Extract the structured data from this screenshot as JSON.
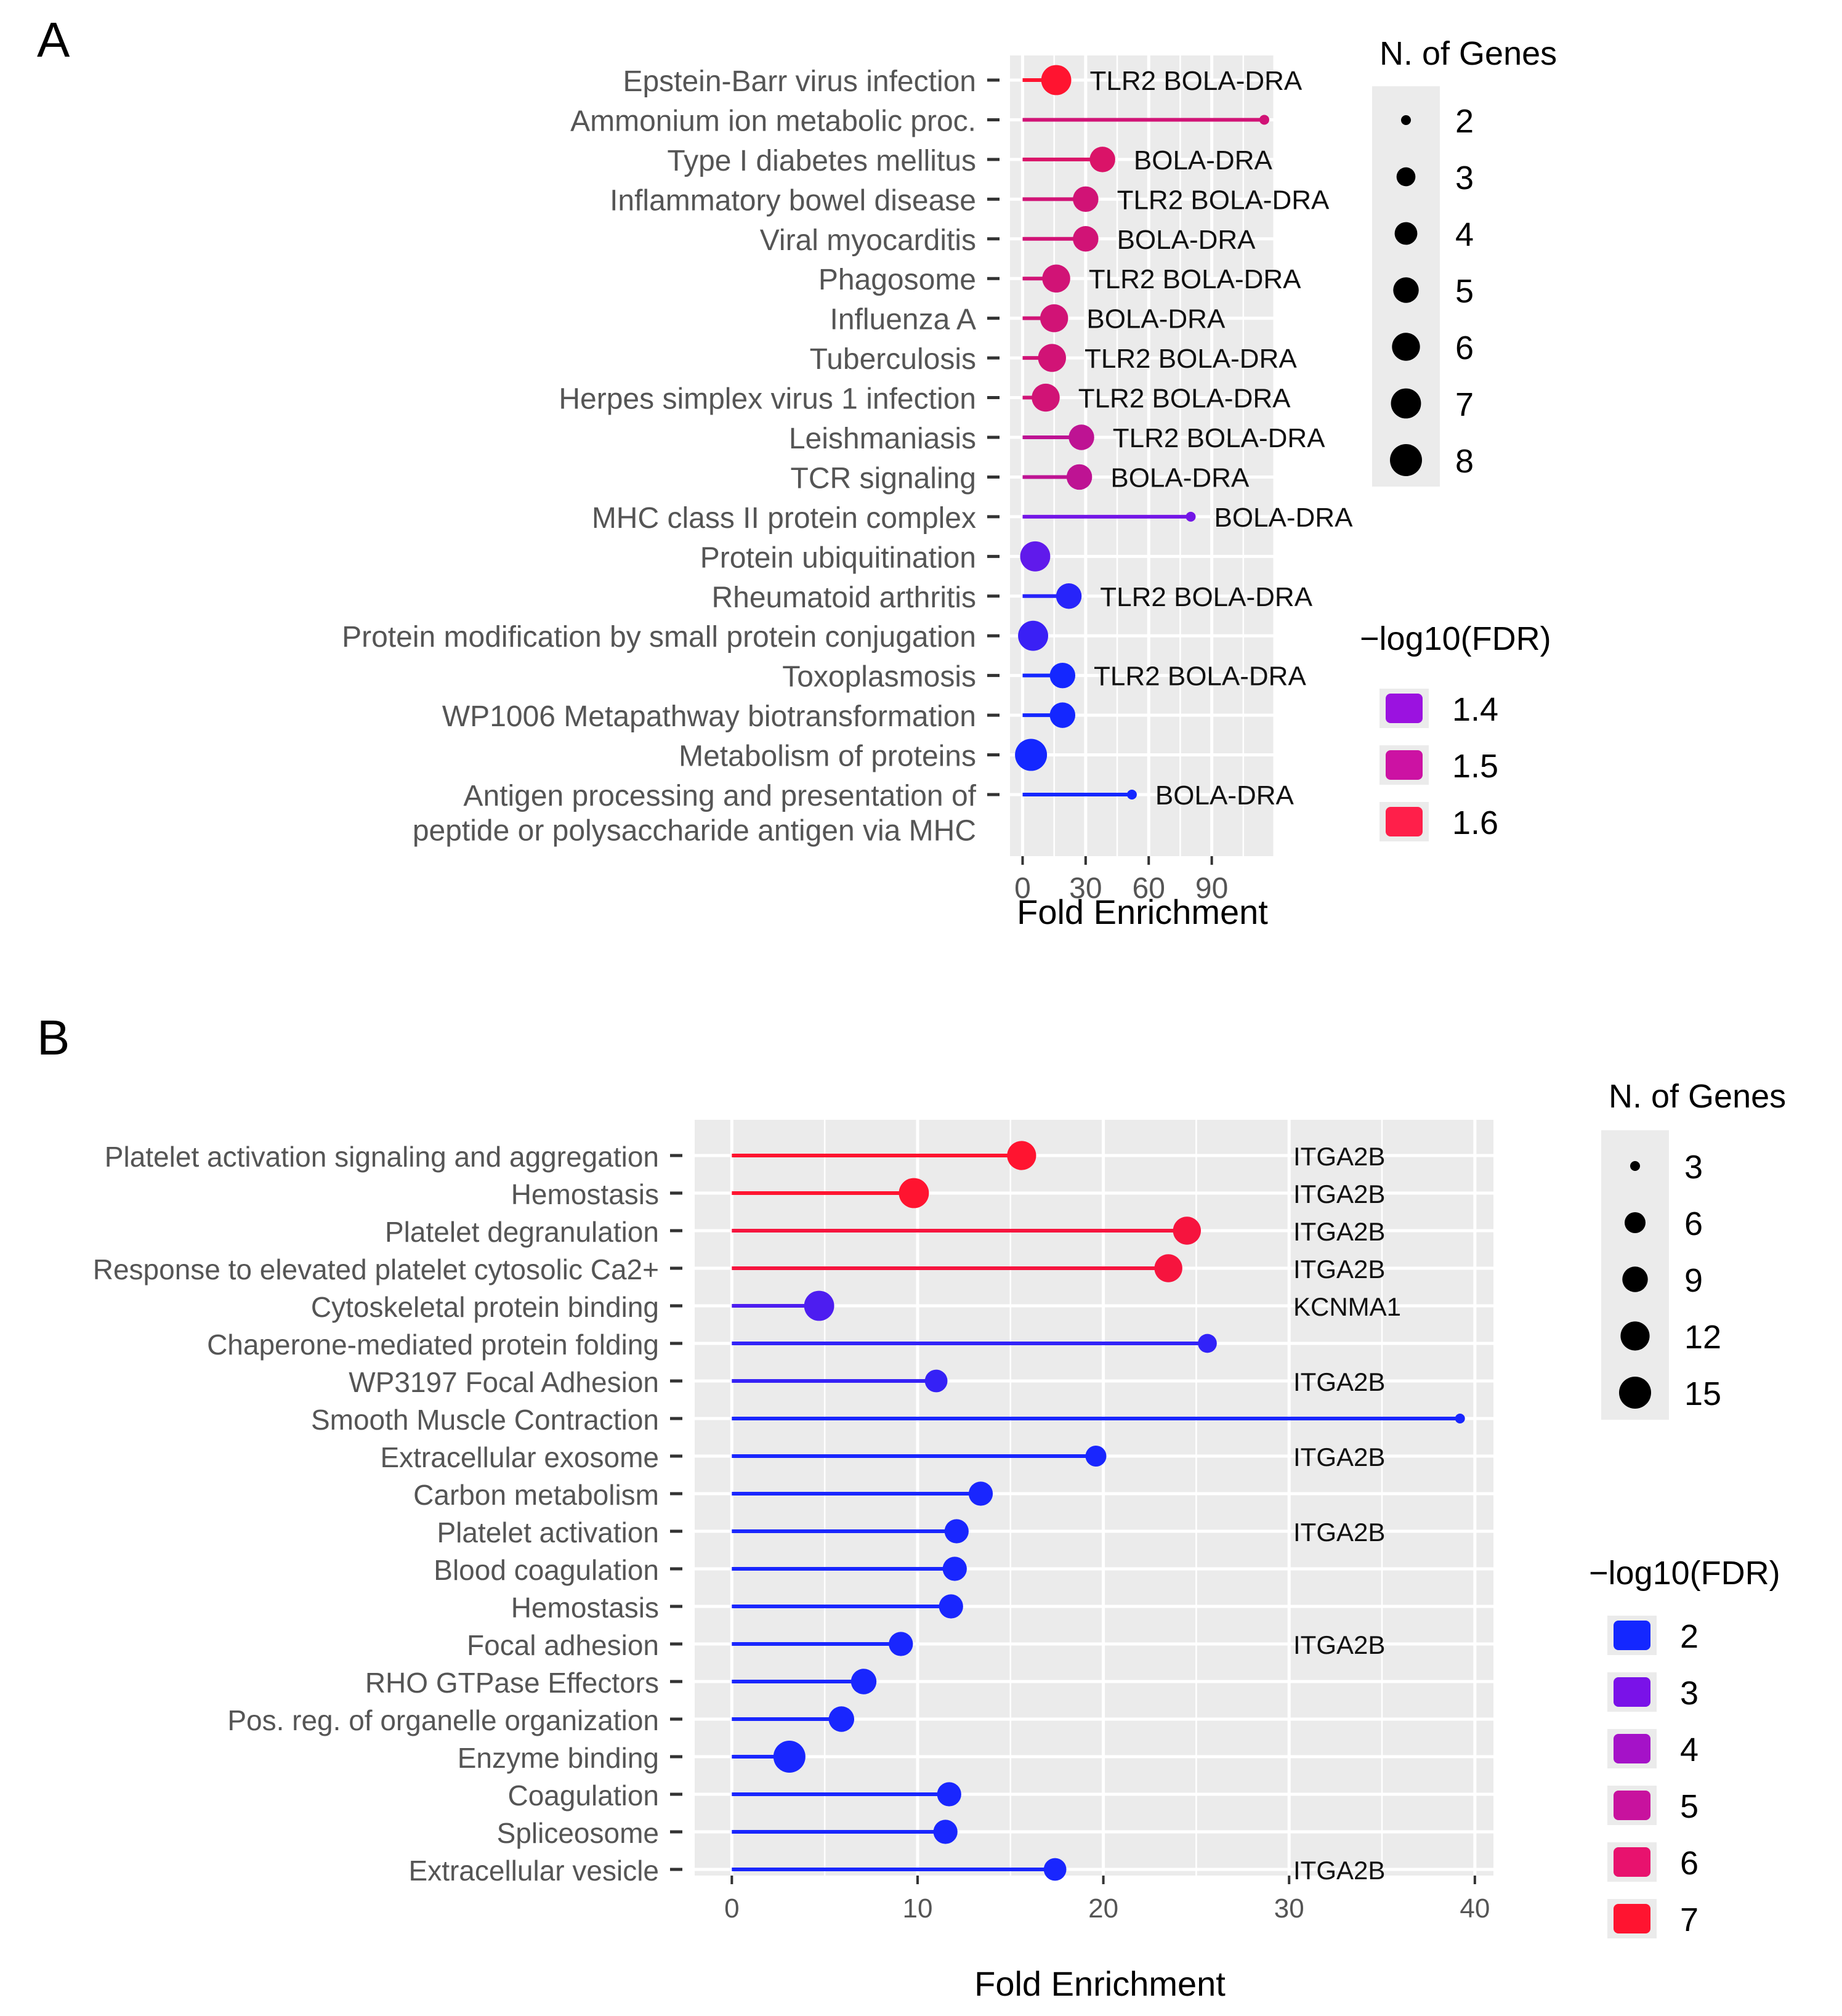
{
  "chart_data": [
    {
      "panel": "A",
      "type": "lollipop",
      "xlabel": "Fold Enrichment",
      "xticks": [
        0,
        30,
        60,
        90
      ],
      "xlim": [
        -6,
        120
      ],
      "size_legend": {
        "title": "N. of Genes",
        "values": [
          2,
          3,
          4,
          5,
          6,
          7,
          8
        ]
      },
      "color_legend": {
        "title": "−log10(FDR)",
        "values": [
          1.4,
          1.5,
          1.6
        ],
        "colors": [
          "#9b12e0",
          "#cc12a3",
          "#ff1f4a"
        ]
      },
      "colors": {
        "low": "#1427ff",
        "mid": "#8b12e0",
        "high": "#ff1430"
      },
      "rows": [
        {
          "label": "Epstein-Barr virus infection",
          "value": 16,
          "genes": "TLR2 BOLA-DRA",
          "size": 7,
          "fdr": 1.68
        },
        {
          "label": "Ammonium ion metabolic proc.",
          "value": 115,
          "genes": "",
          "size": 2,
          "fdr": 1.6
        },
        {
          "label": "Type I diabetes mellitus",
          "value": 38,
          "genes": "BOLA-DRA",
          "size": 5,
          "fdr": 1.61
        },
        {
          "label": "Inflammatory bowel disease",
          "value": 30,
          "genes": "TLR2 BOLA-DRA",
          "size": 5,
          "fdr": 1.6
        },
        {
          "label": "Viral myocarditis",
          "value": 30,
          "genes": "BOLA-DRA",
          "size": 5,
          "fdr": 1.6
        },
        {
          "label": "Phagosome",
          "value": 16,
          "genes": "TLR2 BOLA-DRA",
          "size": 6,
          "fdr": 1.6
        },
        {
          "label": "Influenza A",
          "value": 15,
          "genes": "BOLA-DRA",
          "size": 6,
          "fdr": 1.6
        },
        {
          "label": "Tuberculosis",
          "value": 14,
          "genes": "TLR2 BOLA-DRA",
          "size": 6,
          "fdr": 1.6
        },
        {
          "label": "Herpes simplex virus 1 infection",
          "value": 11,
          "genes": "TLR2 BOLA-DRA",
          "size": 6,
          "fdr": 1.6
        },
        {
          "label": "Leishmaniasis",
          "value": 28,
          "genes": "TLR2 BOLA-DRA",
          "size": 5,
          "fdr": 1.58
        },
        {
          "label": "TCR signaling",
          "value": 27,
          "genes": "BOLA-DRA",
          "size": 5,
          "fdr": 1.58
        },
        {
          "label": "MHC class II protein complex",
          "value": 80,
          "genes": "BOLA-DRA",
          "size": 2,
          "fdr": 1.5
        },
        {
          "label": "Protein ubiquitination",
          "value": 6,
          "genes": "",
          "size": 7,
          "fdr": 1.48
        },
        {
          "label": "Rheumatoid arthritis",
          "value": 22,
          "genes": "TLR2 BOLA-DRA",
          "size": 5,
          "fdr": 1.42
        },
        {
          "label": "Protein modification by small protein conjugation",
          "value": 5,
          "genes": "",
          "size": 7,
          "fdr": 1.44
        },
        {
          "label": "Toxoplasmosis",
          "value": 19,
          "genes": "TLR2 BOLA-DRA",
          "size": 5,
          "fdr": 1.38
        },
        {
          "label": "WP1006 Metapathway biotransformation",
          "value": 19,
          "genes": "",
          "size": 5,
          "fdr": 1.38
        },
        {
          "label": "Metabolism of proteins",
          "value": 4,
          "genes": "",
          "size": 8,
          "fdr": 1.36
        },
        {
          "label": "Antigen processing and presentation of peptide or polysaccharide antigen via MHC",
          "value": 52,
          "genes": "BOLA-DRA",
          "size": 2,
          "fdr": 1.3
        }
      ]
    },
    {
      "panel": "B",
      "type": "lollipop",
      "xlabel": "Fold Enrichment",
      "xticks": [
        0,
        10,
        20,
        30,
        40
      ],
      "xlim": [
        -2,
        41
      ],
      "size_legend": {
        "title": "N. of Genes",
        "values": [
          3,
          6,
          9,
          12,
          15
        ]
      },
      "color_legend": {
        "title": "−log10(FDR)",
        "values": [
          2,
          3,
          4,
          5,
          6,
          7
        ],
        "colors": [
          "#1427ff",
          "#7a12e8",
          "#a512c8",
          "#c8129e",
          "#e8126e",
          "#ff1430"
        ]
      },
      "colors": {
        "low": "#1427ff",
        "mid": "#8b12e0",
        "high": "#ff1430"
      },
      "rows": [
        {
          "label": "Platelet activation signaling and aggregation",
          "value": 15.6,
          "genes": "ITGA2B",
          "size": 12,
          "fdr": 7
        },
        {
          "label": "Hemostasis",
          "value": 9.8,
          "genes": "ITGA2B",
          "size": 13,
          "fdr": 7
        },
        {
          "label": "Platelet degranulation",
          "value": 24.5,
          "genes": "ITGA2B",
          "size": 11,
          "fdr": 6.8
        },
        {
          "label": "Response to elevated platelet cytosolic Ca2+",
          "value": 23.5,
          "genes": "ITGA2B",
          "size": 11,
          "fdr": 6.8
        },
        {
          "label": "Cytoskeletal protein binding",
          "value": 4.7,
          "genes": "KCNMA1",
          "size": 13,
          "fdr": 3.2
        },
        {
          "label": "Chaperone-mediated protein folding",
          "value": 25.6,
          "genes": "",
          "size": 5,
          "fdr": 2.6
        },
        {
          "label": "WP3197 Focal Adhesion",
          "value": 11,
          "genes": "ITGA2B",
          "size": 7,
          "fdr": 2.7
        },
        {
          "label": "Smooth Muscle Contraction",
          "value": 39.2,
          "genes": "",
          "size": 3,
          "fdr": 2.1
        },
        {
          "label": "Extracellular exosome",
          "value": 19.6,
          "genes": "ITGA2B",
          "size": 6,
          "fdr": 2.1
        },
        {
          "label": "Carbon metabolism",
          "value": 13.4,
          "genes": "",
          "size": 8,
          "fdr": 2.1
        },
        {
          "label": "Platelet activation",
          "value": 12.1,
          "genes": "ITGA2B",
          "size": 8,
          "fdr": 2.1
        },
        {
          "label": "Blood coagulation",
          "value": 12,
          "genes": "",
          "size": 8,
          "fdr": 2.1
        },
        {
          "label": "Hemostasis",
          "value": 11.8,
          "genes": "",
          "size": 8,
          "fdr": 2.1
        },
        {
          "label": "Focal adhesion",
          "value": 9.1,
          "genes": "ITGA2B",
          "size": 8,
          "fdr": 2.1
        },
        {
          "label": "RHO GTPase Effectors",
          "value": 7.1,
          "genes": "",
          "size": 9,
          "fdr": 2.1
        },
        {
          "label": "Pos. reg. of organelle organization",
          "value": 5.9,
          "genes": "",
          "size": 9,
          "fdr": 2.1
        },
        {
          "label": "Enzyme binding",
          "value": 3.1,
          "genes": "",
          "size": 15,
          "fdr": 2.1
        },
        {
          "label": "Coagulation",
          "value": 11.7,
          "genes": "",
          "size": 8,
          "fdr": 2.1
        },
        {
          "label": "Spliceosome",
          "value": 11.5,
          "genes": "",
          "size": 8,
          "fdr": 2.1
        },
        {
          "label": "Extracellular vesicle",
          "value": 17.4,
          "genes": "ITGA2B",
          "size": 7,
          "fdr": 2.1
        }
      ]
    }
  ]
}
